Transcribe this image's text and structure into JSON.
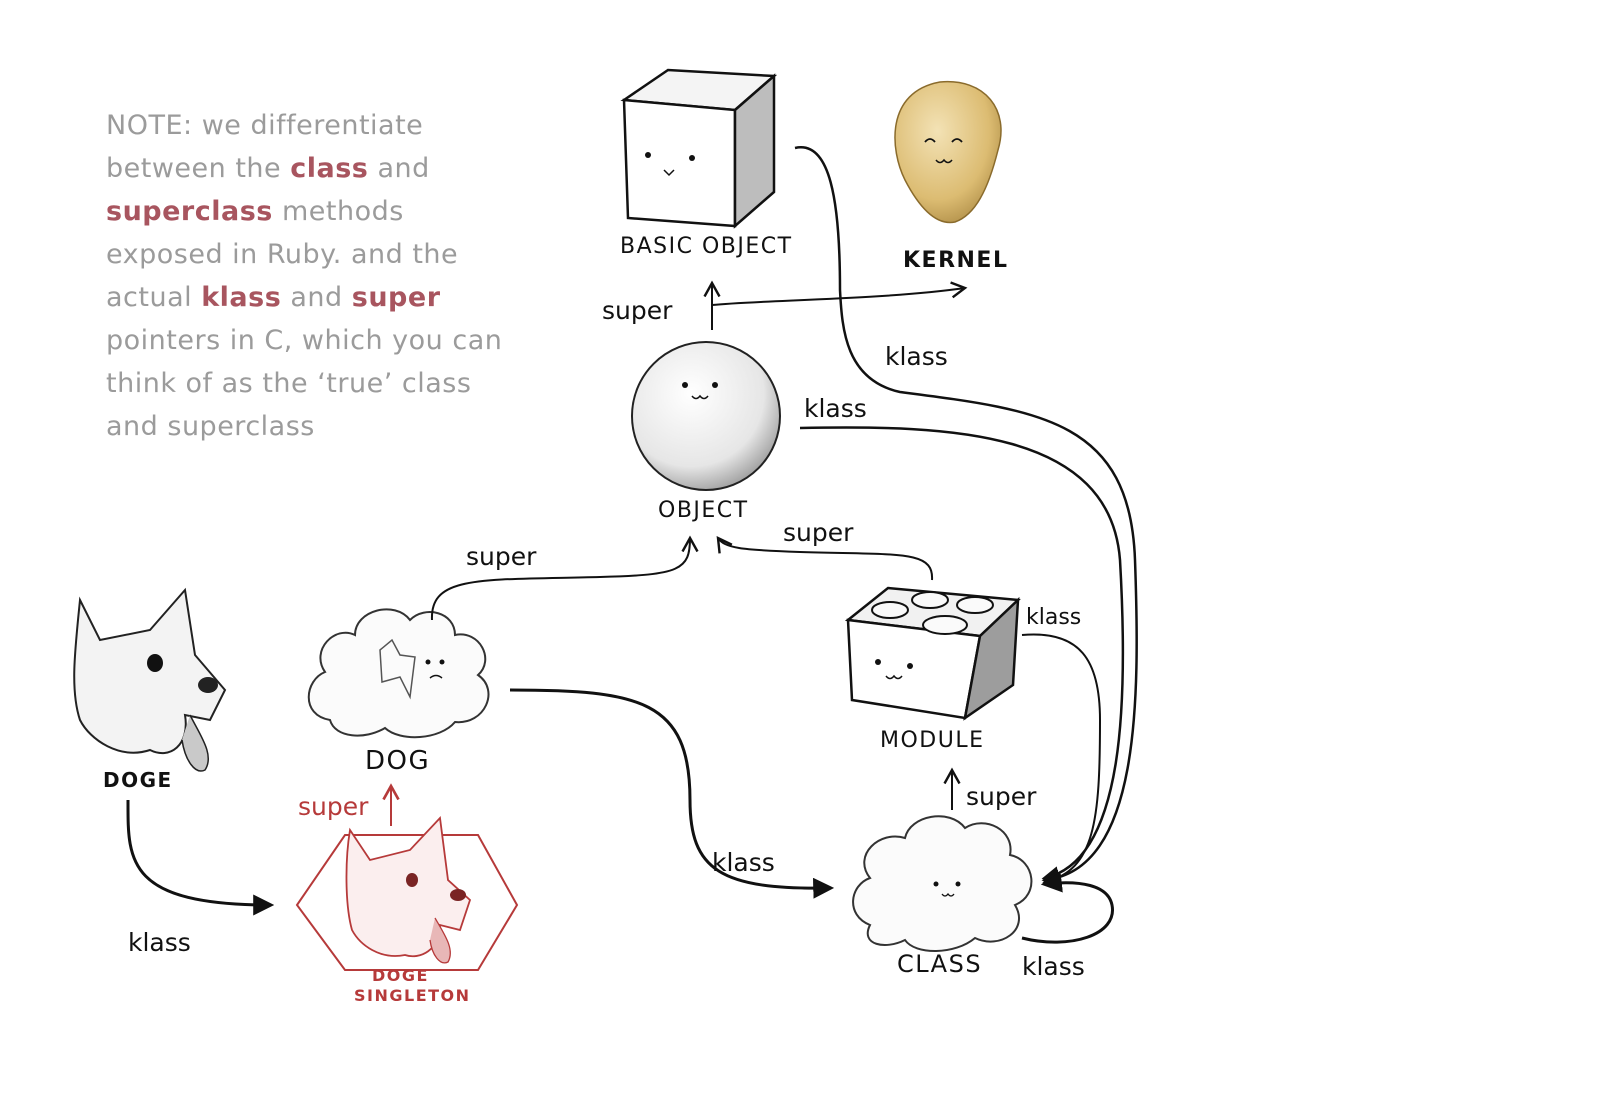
{
  "note": {
    "prefix": "NOTE",
    "text_1": ": we differentiate between the ",
    "class": "class",
    "text_2": " and ",
    "superclass": "superclass",
    "text_3": " methods exposed in Ruby. and the actual ",
    "klass": "klass",
    "text_4": " and ",
    "super": "super",
    "text_5": " pointers in C, which you can think of as the ‘true’ class and superclass"
  },
  "nodes": {
    "basic_object": "BASIC OBJECT",
    "kernel": "KERNEL",
    "object": "OBJECT",
    "module": "MODULE",
    "class": "CLASS",
    "dog": "DOG",
    "doge": "DOGE",
    "doge_singleton_1": "DOGE",
    "doge_singleton_2": "SINGLETON"
  },
  "edges": {
    "basic_super": "super",
    "object_klass": "klass",
    "basic_klass": "klass",
    "dog_super": "super",
    "module_super": "super",
    "module_klass": "klass",
    "class_super": "super",
    "dog_klass": "klass",
    "doge_klass": "klass",
    "singleton_super": "super",
    "class_self_klass": "klass"
  },
  "colors": {
    "ink": "#111111",
    "note_gray": "#9b9b9b",
    "highlight": "#a8555f",
    "singleton_red": "#b63a3a",
    "kernel_gold": "#d9b86a"
  }
}
